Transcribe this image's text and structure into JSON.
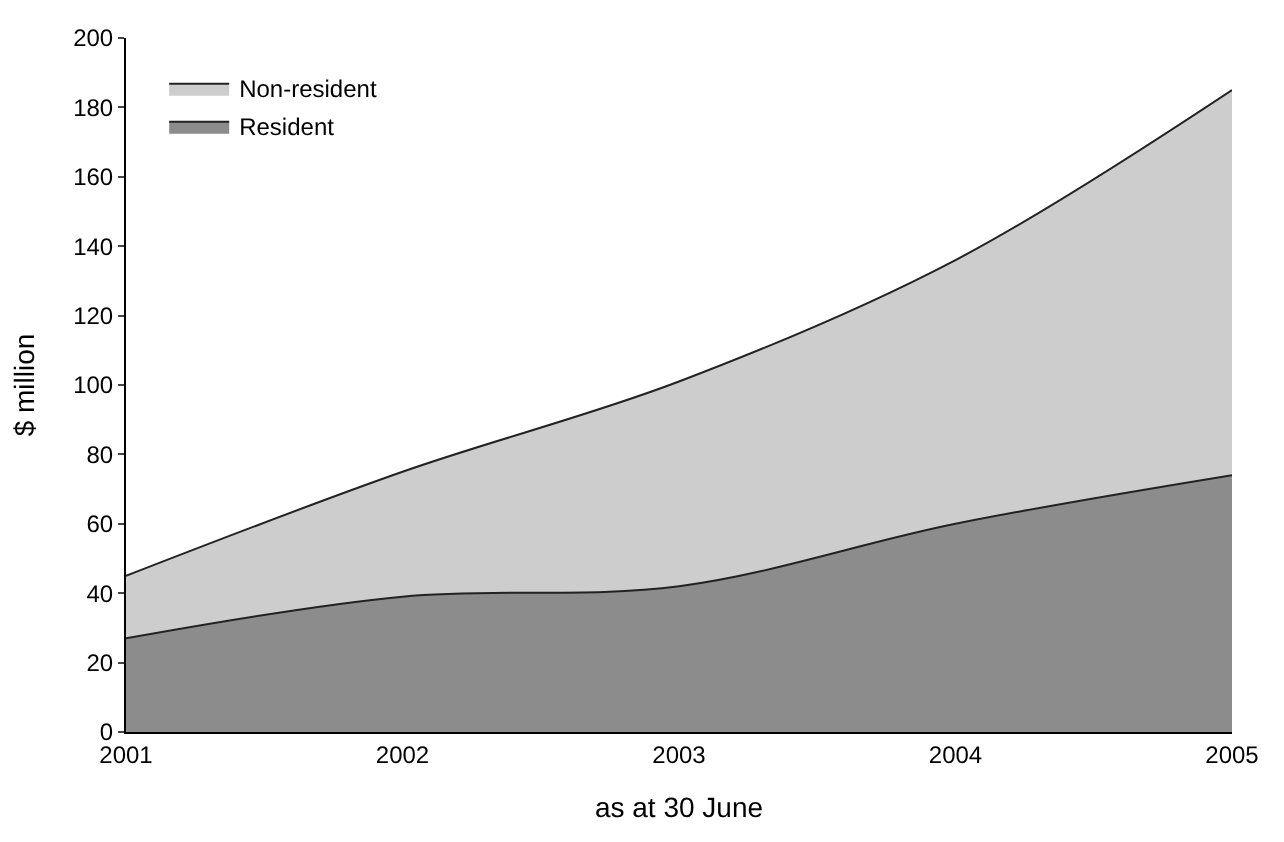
{
  "chart_data": {
    "type": "area",
    "stacked": true,
    "xlabel": "as at 30 June",
    "ylabel": "$ million",
    "x": [
      2001,
      2002,
      2003,
      2004,
      2005
    ],
    "series": [
      {
        "name": "Resident",
        "color": "#8c8c8c",
        "values": [
          27,
          39,
          42,
          60,
          74
        ]
      },
      {
        "name": "Non-resident",
        "color": "#cdcdcd",
        "values": [
          18,
          36,
          59,
          76,
          111
        ]
      }
    ],
    "xlim": [
      2001,
      2005
    ],
    "xticks": [
      2001,
      2002,
      2003,
      2004,
      2005
    ],
    "ylim": [
      0,
      200
    ],
    "yticks": [
      0,
      20,
      40,
      60,
      80,
      100,
      120,
      140,
      160,
      180,
      200
    ],
    "legend": "top left"
  }
}
